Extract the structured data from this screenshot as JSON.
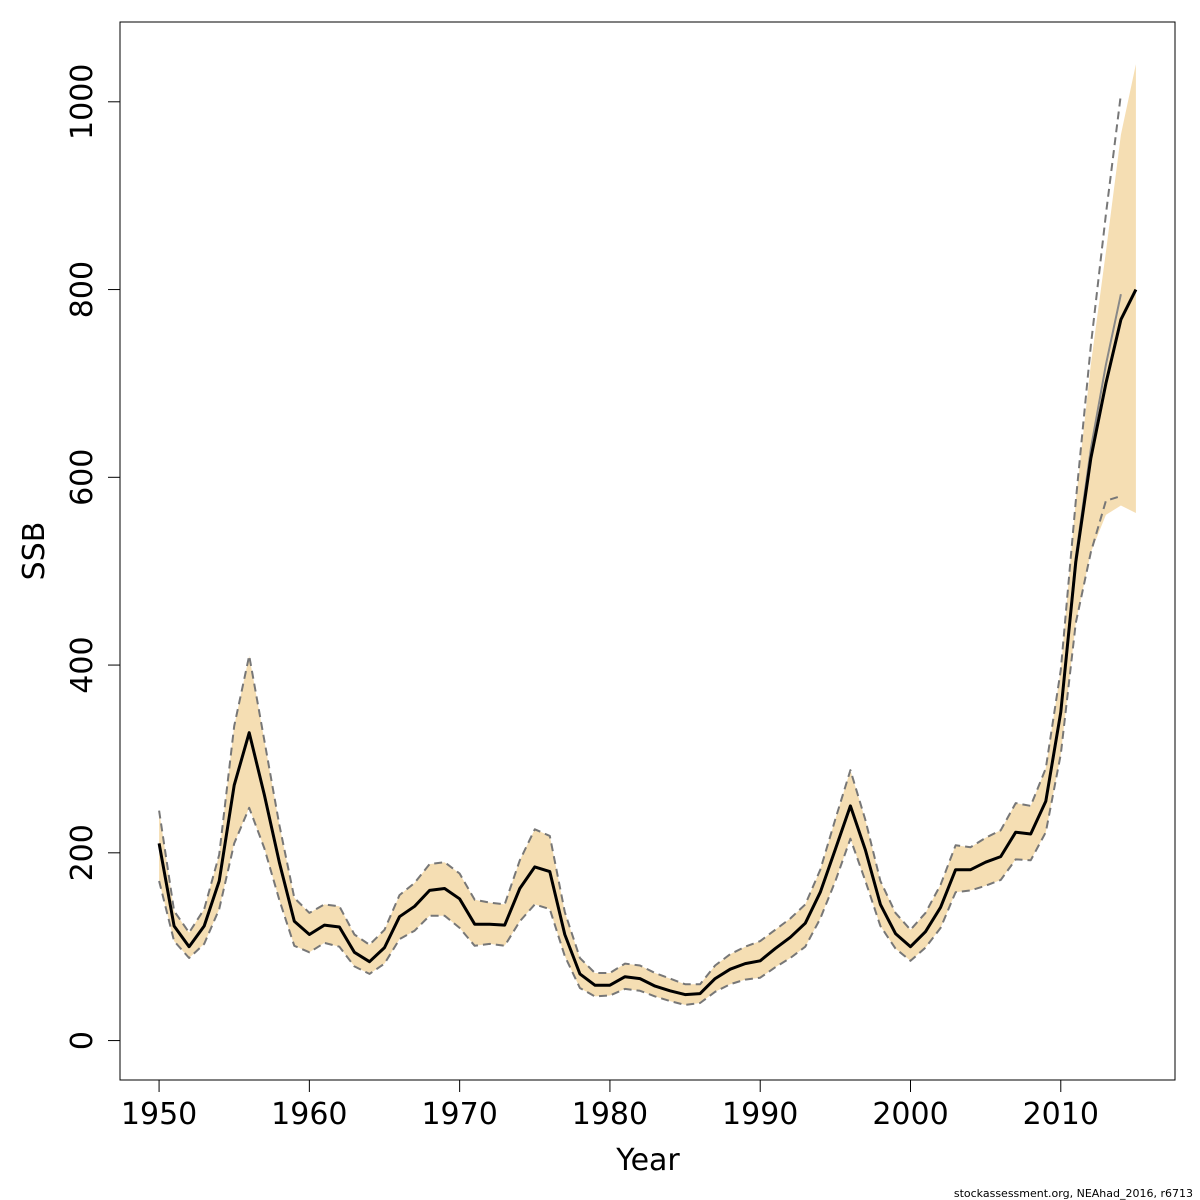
{
  "chart_data": {
    "type": "line",
    "title": "",
    "xlabel": "Year",
    "ylabel": "SSB",
    "xlim": [
      1947.4,
      2017.6
    ],
    "ylim": [
      -42,
      1085
    ],
    "x_ticks": [
      1950,
      1960,
      1970,
      1980,
      1990,
      2000,
      2010
    ],
    "y_ticks": [
      0,
      200,
      400,
      600,
      800,
      1000
    ],
    "grid": false,
    "legend": "none",
    "credit": "stockassessment.org, NEAhad_2016, r6713",
    "colors": {
      "band_fill": "#f5deb3",
      "estimate_line": "#000000",
      "bound_line": "#777777",
      "previous_line": "#888888"
    },
    "series": [
      {
        "role": "estimate",
        "x": [
          1950,
          1951,
          1952,
          1953,
          1954,
          1955,
          1956,
          1957,
          1958,
          1959,
          1960,
          1961,
          1962,
          1963,
          1964,
          1965,
          1966,
          1967,
          1968,
          1969,
          1970,
          1971,
          1972,
          1973,
          1974,
          1975,
          1976,
          1977,
          1978,
          1979,
          1980,
          1981,
          1982,
          1983,
          1984,
          1985,
          1986,
          1987,
          1988,
          1989,
          1990,
          1991,
          1992,
          1993,
          1994,
          1995,
          1996,
          1997,
          1998,
          1999,
          2000,
          2001,
          2002,
          2003,
          2004,
          2005,
          2006,
          2007,
          2008,
          2009,
          2010,
          2011,
          2012,
          2013,
          2014,
          2015
        ],
        "y": [
          210,
          122,
          100,
          122,
          170,
          272,
          328,
          262,
          190,
          127,
          113,
          123,
          121,
          94,
          84,
          99,
          132,
          143,
          160,
          162,
          151,
          124,
          124,
          123,
          162,
          185,
          180,
          113,
          71,
          59,
          59,
          68,
          66,
          58,
          53,
          49,
          50,
          66,
          76,
          82,
          85,
          98,
          110,
          125,
          158,
          204,
          250,
          203,
          145,
          114,
          100,
          116,
          142,
          182,
          182,
          190,
          196,
          222,
          220,
          255,
          350,
          510,
          620,
          700,
          768,
          800
        ]
      },
      {
        "role": "upper-bound",
        "x": [
          1950,
          1951,
          1952,
          1953,
          1954,
          1955,
          1956,
          1957,
          1958,
          1959,
          1960,
          1961,
          1962,
          1963,
          1964,
          1965,
          1966,
          1967,
          1968,
          1969,
          1970,
          1971,
          1972,
          1973,
          1974,
          1975,
          1976,
          1977,
          1978,
          1979,
          1980,
          1981,
          1982,
          1983,
          1984,
          1985,
          1986,
          1987,
          1988,
          1989,
          1990,
          1991,
          1992,
          1993,
          1994,
          1995,
          1996,
          1997,
          1998,
          1999,
          2000,
          2001,
          2002,
          2003,
          2004,
          2005,
          2006,
          2007,
          2008,
          2009,
          2010,
          2011,
          2012,
          2013,
          2014
        ],
        "y": [
          245,
          138,
          115,
          140,
          198,
          335,
          410,
          320,
          230,
          152,
          136,
          145,
          143,
          113,
          102,
          118,
          155,
          168,
          188,
          190,
          178,
          150,
          147,
          145,
          192,
          225,
          218,
          137,
          88,
          72,
          72,
          82,
          80,
          72,
          66,
          60,
          60,
          80,
          92,
          100,
          106,
          118,
          130,
          145,
          182,
          236,
          288,
          235,
          170,
          136,
          118,
          136,
          166,
          208,
          206,
          216,
          224,
          253,
          250,
          290,
          395,
          575,
          740,
          880,
          1008
        ]
      },
      {
        "role": "lower-bound",
        "x": [
          1950,
          1951,
          1952,
          1953,
          1954,
          1955,
          1956,
          1957,
          1958,
          1959,
          1960,
          1961,
          1962,
          1963,
          1964,
          1965,
          1966,
          1967,
          1968,
          1969,
          1970,
          1971,
          1972,
          1973,
          1974,
          1975,
          1976,
          1977,
          1978,
          1979,
          1980,
          1981,
          1982,
          1983,
          1984,
          1985,
          1986,
          1987,
          1988,
          1989,
          1990,
          1991,
          1992,
          1993,
          1994,
          1995,
          1996,
          1997,
          1998,
          1999,
          2000,
          2001,
          2002,
          2003,
          2004,
          2005,
          2006,
          2007,
          2008,
          2009,
          2010,
          2011,
          2012,
          2013,
          2014
        ],
        "y": [
          170,
          106,
          88,
          103,
          140,
          210,
          248,
          205,
          150,
          101,
          94,
          104,
          100,
          79,
          71,
          82,
          108,
          117,
          133,
          133,
          120,
          101,
          103,
          101,
          127,
          145,
          140,
          90,
          56,
          47,
          48,
          55,
          53,
          47,
          42,
          38,
          40,
          52,
          60,
          65,
          67,
          78,
          88,
          100,
          130,
          170,
          215,
          170,
          122,
          98,
          85,
          99,
          120,
          158,
          160,
          165,
          171,
          193,
          192,
          222,
          305,
          445,
          520,
          575,
          580
        ]
      },
      {
        "role": "previous-assessment",
        "x": [
          2010,
          2011,
          2012,
          2013,
          2014
        ],
        "y": [
          350,
          515,
          630,
          720,
          795
        ]
      }
    ],
    "band": {
      "x": [
        1950,
        1951,
        1952,
        1953,
        1954,
        1955,
        1956,
        1957,
        1958,
        1959,
        1960,
        1961,
        1962,
        1963,
        1964,
        1965,
        1966,
        1967,
        1968,
        1969,
        1970,
        1971,
        1972,
        1973,
        1974,
        1975,
        1976,
        1977,
        1978,
        1979,
        1980,
        1981,
        1982,
        1983,
        1984,
        1985,
        1986,
        1987,
        1988,
        1989,
        1990,
        1991,
        1992,
        1993,
        1994,
        1995,
        1996,
        1997,
        1998,
        1999,
        2000,
        2001,
        2002,
        2003,
        2004,
        2005,
        2006,
        2007,
        2008,
        2009,
        2010,
        2011,
        2012,
        2013,
        2014,
        2015
      ],
      "upper": [
        245,
        138,
        115,
        140,
        198,
        335,
        410,
        320,
        230,
        152,
        136,
        145,
        143,
        113,
        102,
        118,
        155,
        168,
        188,
        190,
        178,
        150,
        147,
        145,
        192,
        225,
        218,
        137,
        88,
        72,
        72,
        82,
        80,
        72,
        66,
        60,
        60,
        80,
        92,
        100,
        106,
        118,
        130,
        145,
        182,
        236,
        288,
        235,
        170,
        136,
        118,
        136,
        166,
        208,
        206,
        216,
        224,
        253,
        250,
        290,
        395,
        575,
        720,
        840,
        965,
        1040
      ],
      "lower": [
        170,
        106,
        88,
        103,
        140,
        210,
        248,
        205,
        150,
        101,
        94,
        104,
        100,
        79,
        71,
        82,
        108,
        117,
        133,
        133,
        120,
        101,
        103,
        101,
        127,
        145,
        140,
        90,
        56,
        47,
        48,
        55,
        53,
        47,
        42,
        38,
        40,
        52,
        60,
        65,
        67,
        78,
        88,
        100,
        130,
        170,
        215,
        170,
        122,
        98,
        85,
        99,
        120,
        158,
        160,
        165,
        171,
        193,
        192,
        222,
        305,
        445,
        520,
        560,
        570,
        562
      ]
    }
  }
}
